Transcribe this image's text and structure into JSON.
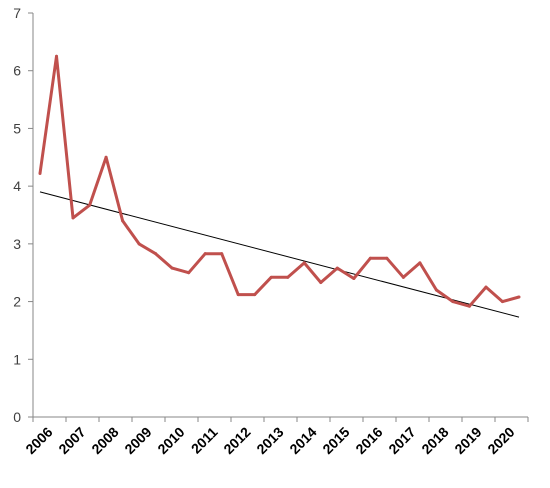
{
  "chart_data": {
    "type": "line",
    "title": "",
    "xlabel": "",
    "ylabel": "",
    "ylim": [
      0,
      7
    ],
    "y_ticks": [
      "0",
      "1",
      "2",
      "3",
      "4",
      "5",
      "6",
      "7"
    ],
    "x_tick_labels": [
      "2006",
      "2007",
      "2008",
      "2009",
      "2010",
      "2011",
      "2012",
      "2013",
      "2014",
      "2015",
      "2016",
      "2017",
      "2018",
      "2019",
      "2020"
    ],
    "grid": false,
    "legend": "none",
    "series": [
      {
        "color": "#c0504d",
        "values": [
          4.22,
          6.25,
          3.45,
          3.67,
          4.5,
          3.4,
          3.0,
          2.83,
          2.58,
          2.5,
          2.83,
          2.83,
          2.12,
          2.12,
          2.42,
          2.42,
          2.67,
          2.33,
          2.58,
          2.4,
          2.75,
          2.75,
          2.42,
          2.67,
          2.2,
          2.0,
          1.92,
          2.25,
          2.0,
          2.08
        ]
      }
    ],
    "trendline": {
      "type": "linear",
      "color": "#000000",
      "start": 3.9,
      "end": 1.73
    }
  }
}
